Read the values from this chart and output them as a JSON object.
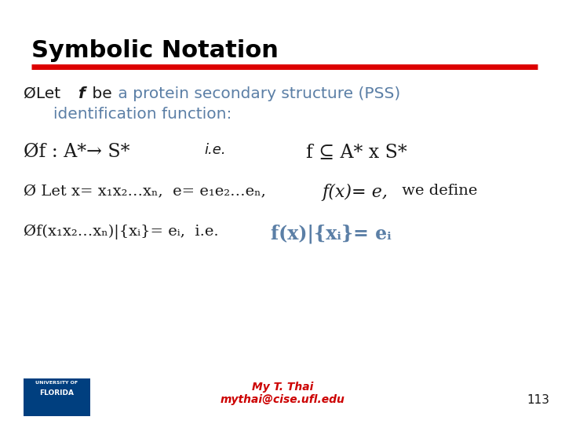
{
  "title": "Symbolic Notation",
  "title_color": "#000000",
  "title_fontsize": 22,
  "red_line_color": "#DD0000",
  "background_color": "#ffffff",
  "blue_text_color": "#5B7FA6",
  "bold_blue_color": "#5B7FA6",
  "dark_text_color": "#1a1a1a",
  "footer_name": "My T. Thai",
  "footer_email": "mythai@cise.ufl.edu",
  "footer_color": "#CC0000",
  "page_number": "113",
  "bullet": "►"
}
